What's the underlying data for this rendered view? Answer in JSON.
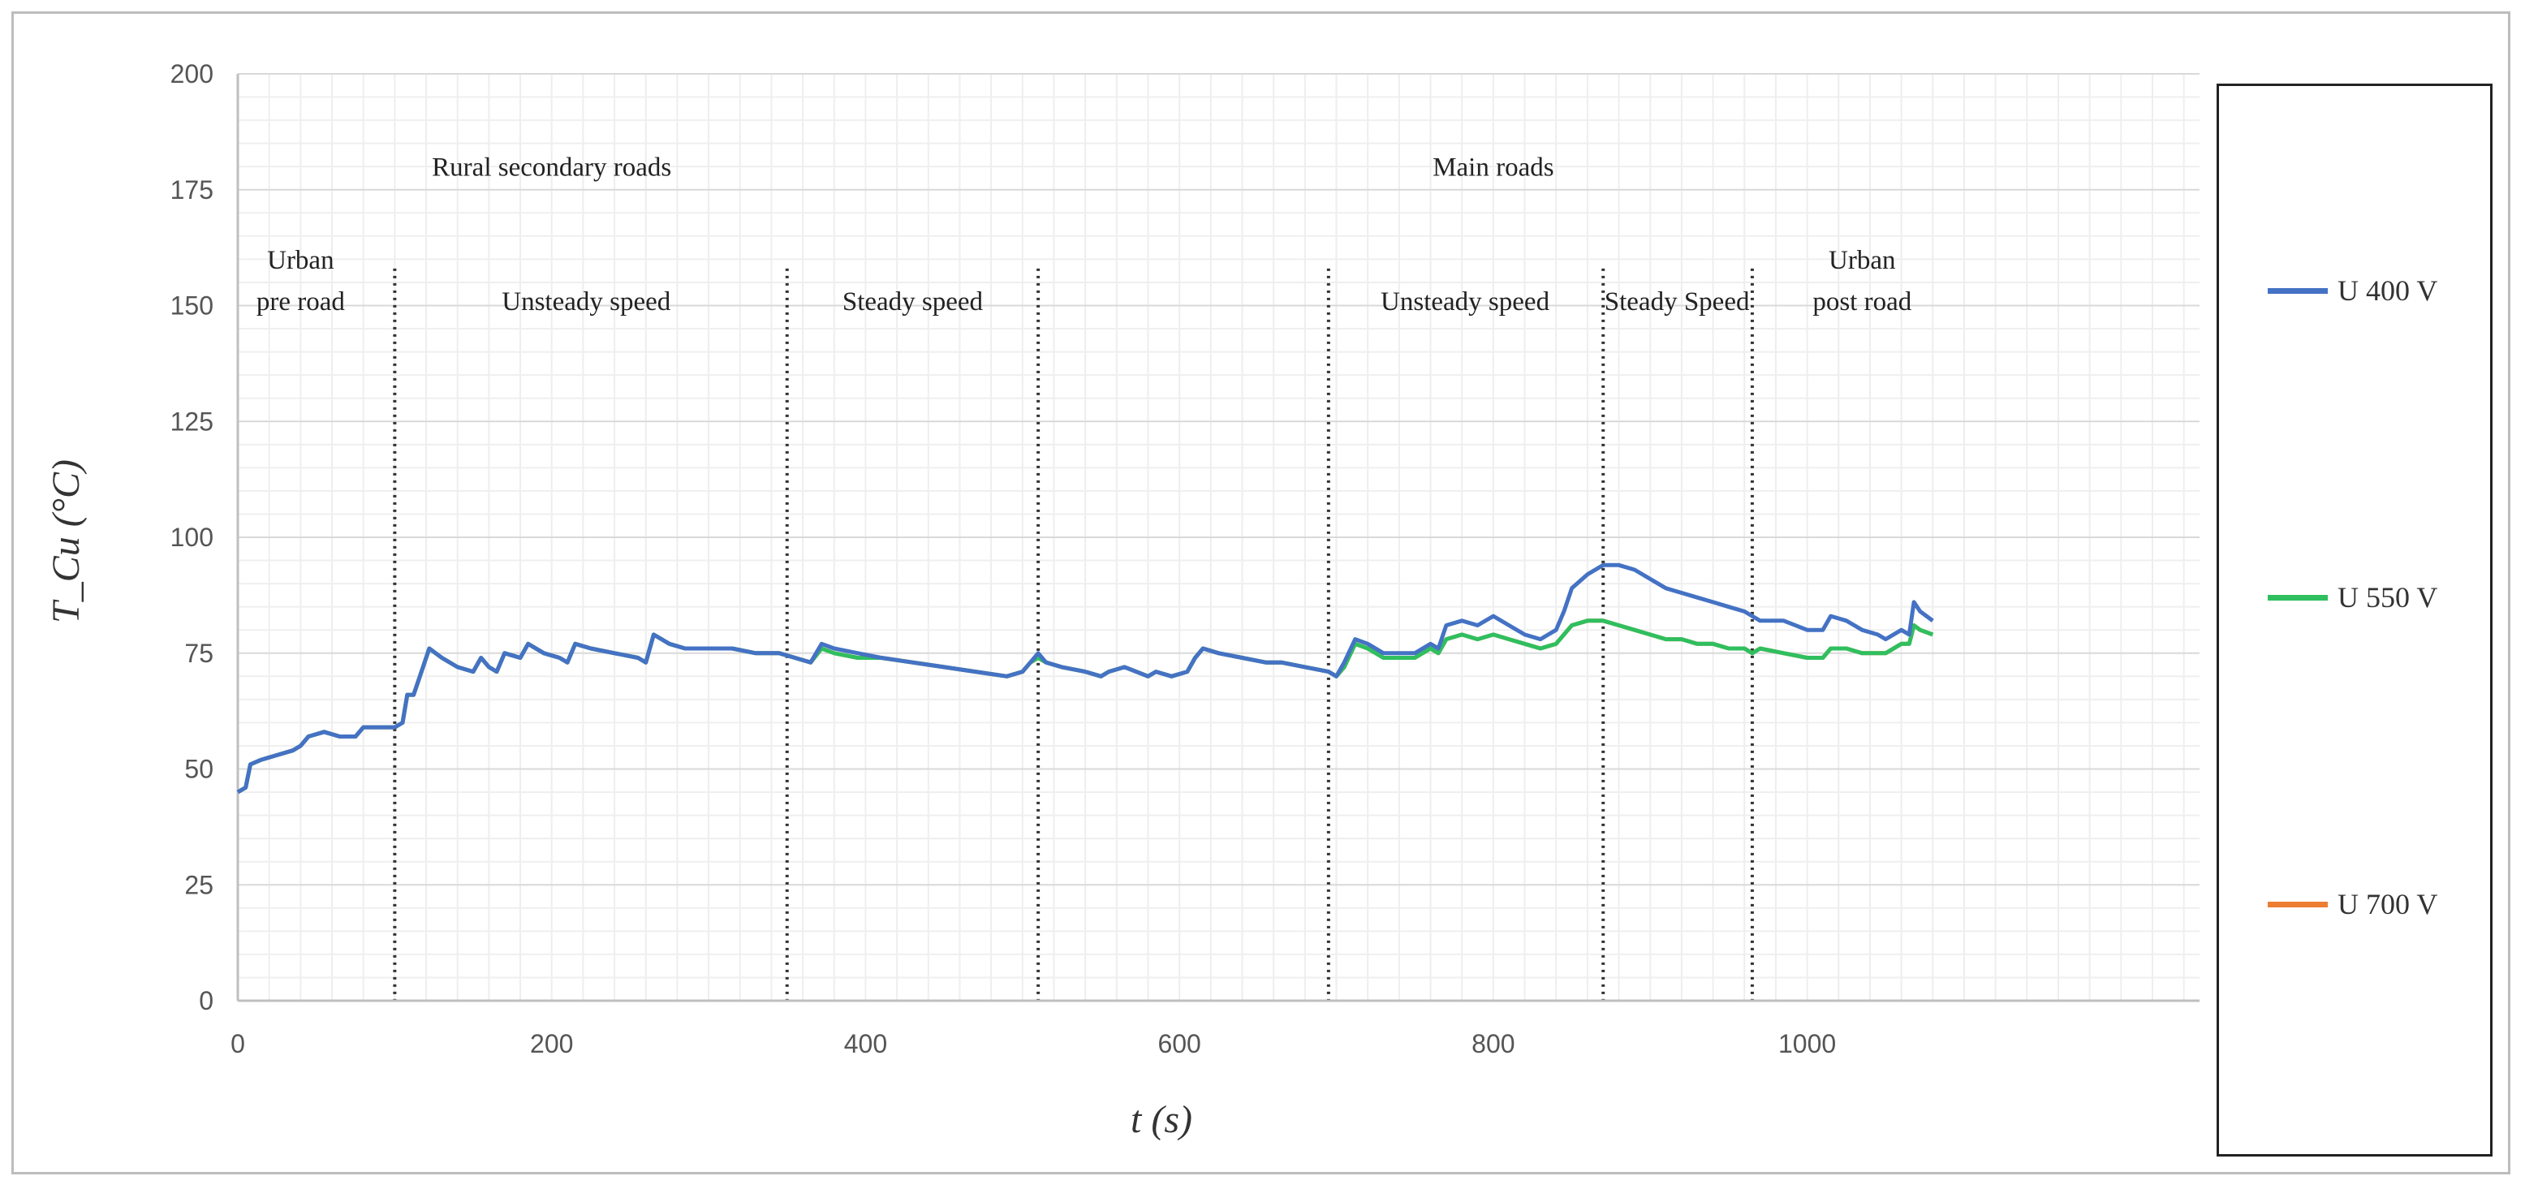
{
  "chart_data": {
    "type": "line",
    "xlabel": "t (s)",
    "ylabel": "T_Cu (°C)",
    "xlim": [
      0,
      1250
    ],
    "ylim": [
      0,
      200
    ],
    "x_ticks": [
      0,
      200,
      400,
      600,
      800,
      1000
    ],
    "y_ticks": [
      0,
      25,
      50,
      75,
      100,
      125,
      150,
      175,
      200
    ],
    "grid": true,
    "legend_position": "right",
    "phase_boundaries": [
      100,
      350,
      510,
      695,
      870,
      965
    ],
    "annotations": [
      {
        "text": "Rural secondary roads",
        "x": 200,
        "y": 178
      },
      {
        "text": "Main roads",
        "x": 800,
        "y": 178
      },
      {
        "text": "Urban",
        "x": 40,
        "y": 158
      },
      {
        "text": "pre road",
        "x": 40,
        "y": 149
      },
      {
        "text": "Unsteady speed",
        "x": 222,
        "y": 149
      },
      {
        "text": "Steady speed",
        "x": 430,
        "y": 149
      },
      {
        "text": "Unsteady speed",
        "x": 782,
        "y": 149
      },
      {
        "text": "Steady Speed",
        "x": 917,
        "y": 149
      },
      {
        "text": "Urban",
        "x": 1035,
        "y": 158
      },
      {
        "text": "post road",
        "x": 1035,
        "y": 149
      }
    ],
    "series": [
      {
        "name": "U 400 V",
        "color": "#4472c4",
        "x": [
          0,
          5,
          8,
          15,
          25,
          35,
          40,
          45,
          55,
          65,
          75,
          80,
          90,
          100,
          105,
          108,
          112,
          118,
          122,
          130,
          140,
          150,
          155,
          160,
          165,
          170,
          180,
          185,
          195,
          205,
          210,
          215,
          225,
          240,
          255,
          260,
          265,
          275,
          285,
          300,
          315,
          330,
          345,
          355,
          365,
          372,
          380,
          395,
          410,
          430,
          450,
          470,
          490,
          500,
          505,
          510,
          515,
          525,
          540,
          550,
          555,
          565,
          580,
          585,
          595,
          605,
          610,
          615,
          625,
          640,
          655,
          665,
          680,
          695,
          700,
          705,
          712,
          720,
          730,
          740,
          750,
          760,
          765,
          770,
          780,
          790,
          800,
          810,
          820,
          830,
          840,
          845,
          850,
          860,
          870,
          880,
          890,
          900,
          910,
          920,
          930,
          940,
          950,
          960,
          965,
          970,
          985,
          1000,
          1010,
          1015,
          1025,
          1035,
          1045,
          1050,
          1060,
          1065,
          1068,
          1072,
          1080
        ],
        "values": [
          45,
          46,
          51,
          52,
          53,
          54,
          55,
          57,
          58,
          57,
          57,
          59,
          59,
          59,
          60,
          66,
          66,
          72,
          76,
          74,
          72,
          71,
          74,
          72,
          71,
          75,
          74,
          77,
          75,
          74,
          73,
          77,
          76,
          75,
          74,
          73,
          79,
          77,
          76,
          76,
          76,
          75,
          75,
          74,
          73,
          77,
          76,
          75,
          74,
          73,
          72,
          71,
          70,
          71,
          73,
          75,
          73,
          72,
          71,
          70,
          71,
          72,
          70,
          71,
          70,
          71,
          74,
          76,
          75,
          74,
          73,
          73,
          72,
          71,
          70,
          73,
          78,
          77,
          75,
          75,
          75,
          77,
          76,
          81,
          82,
          81,
          83,
          81,
          79,
          78,
          80,
          84,
          89,
          92,
          94,
          94,
          93,
          91,
          89,
          88,
          87,
          86,
          85,
          84,
          83,
          82,
          82,
          80,
          80,
          83,
          82,
          80,
          79,
          78,
          80,
          79,
          86,
          84,
          82
        ]
      },
      {
        "name": "U 550 V",
        "color": "#2fbf5f",
        "x": [
          0,
          5,
          8,
          15,
          25,
          35,
          40,
          45,
          55,
          65,
          75,
          80,
          90,
          100,
          105,
          108,
          112,
          118,
          122,
          130,
          140,
          150,
          155,
          160,
          165,
          170,
          180,
          185,
          195,
          205,
          210,
          215,
          225,
          240,
          255,
          260,
          265,
          275,
          285,
          300,
          315,
          330,
          345,
          355,
          365,
          372,
          380,
          395,
          410,
          430,
          450,
          470,
          490,
          500,
          505,
          510,
          515,
          525,
          540,
          550,
          555,
          565,
          580,
          585,
          595,
          605,
          610,
          615,
          625,
          640,
          655,
          665,
          680,
          695,
          700,
          705,
          712,
          720,
          730,
          740,
          750,
          760,
          765,
          770,
          780,
          790,
          800,
          810,
          820,
          830,
          840,
          845,
          850,
          860,
          870,
          880,
          890,
          900,
          910,
          920,
          930,
          940,
          950,
          960,
          965,
          970,
          985,
          1000,
          1010,
          1015,
          1025,
          1035,
          1045,
          1050,
          1060,
          1065,
          1068,
          1072,
          1080
        ],
        "values": [
          45,
          46,
          51,
          52,
          53,
          54,
          55,
          57,
          58,
          57,
          57,
          59,
          59,
          59,
          60,
          66,
          66,
          72,
          76,
          74,
          72,
          71,
          74,
          72,
          71,
          75,
          74,
          77,
          75,
          74,
          73,
          77,
          76,
          75,
          74,
          73,
          79,
          77,
          76,
          76,
          76,
          75,
          75,
          74,
          73,
          76,
          75,
          74,
          74,
          73,
          72,
          71,
          70,
          71,
          73,
          74,
          73,
          72,
          71,
          70,
          71,
          72,
          70,
          71,
          70,
          71,
          74,
          76,
          75,
          74,
          73,
          73,
          72,
          71,
          70,
          72,
          77,
          76,
          74,
          74,
          74,
          76,
          75,
          78,
          79,
          78,
          79,
          78,
          77,
          76,
          77,
          79,
          81,
          82,
          82,
          81,
          80,
          79,
          78,
          78,
          77,
          77,
          76,
          76,
          75,
          76,
          75,
          74,
          74,
          76,
          76,
          75,
          75,
          75,
          77,
          77,
          81,
          80,
          79
        ]
      },
      {
        "name": "U 700 V",
        "color": "#ed7d31",
        "x": [
          0,
          5,
          8,
          15,
          25,
          35,
          40,
          45,
          55,
          65,
          75,
          80,
          90,
          100,
          105,
          108,
          112,
          118,
          122,
          130,
          140,
          150,
          155,
          160,
          165,
          170,
          180,
          185,
          195,
          205,
          210,
          215,
          225,
          240,
          255,
          260,
          265,
          275,
          285,
          300,
          315,
          330,
          345,
          355,
          365,
          372,
          380,
          395,
          410,
          430,
          450,
          470,
          490,
          500,
          505,
          510,
          515,
          525,
          540,
          550,
          555,
          565,
          580,
          585,
          595,
          605,
          610,
          615,
          625,
          640,
          655,
          665,
          680,
          695,
          700,
          705,
          712,
          720,
          730,
          740,
          750,
          760,
          765,
          770,
          780,
          790,
          800,
          810,
          820,
          830,
          840,
          845,
          850,
          860,
          870,
          880,
          890,
          900,
          910,
          920,
          930,
          940,
          950,
          960,
          965,
          970,
          985,
          1000,
          1010,
          1015,
          1025,
          1035,
          1045,
          1050,
          1060,
          1065,
          1068,
          1072,
          1080
        ],
        "values": [
          45,
          46,
          51,
          52,
          53,
          54,
          55,
          57,
          58,
          57,
          57,
          59,
          59,
          59,
          60,
          66,
          66,
          72,
          76,
          74,
          72,
          71,
          74,
          72,
          71,
          75,
          74,
          77,
          75,
          74,
          73,
          77,
          76,
          75,
          74,
          73,
          79,
          77,
          76,
          76,
          76,
          75,
          75,
          74,
          73,
          76,
          75,
          74,
          74,
          73,
          72,
          71,
          70,
          71,
          73,
          74,
          73,
          72,
          71,
          70,
          71,
          72,
          70,
          71,
          70,
          71,
          74,
          76,
          75,
          74,
          73,
          73,
          72,
          71,
          70,
          72,
          77,
          76,
          74,
          74,
          74,
          76,
          75,
          78,
          79,
          78,
          79,
          78,
          77,
          76,
          77,
          79,
          81,
          82,
          82,
          81,
          80,
          79,
          78,
          78,
          77,
          77,
          76,
          76,
          75,
          76,
          75,
          74,
          74,
          76,
          76,
          75,
          75,
          75,
          77,
          77,
          81,
          80,
          79
        ]
      }
    ]
  }
}
